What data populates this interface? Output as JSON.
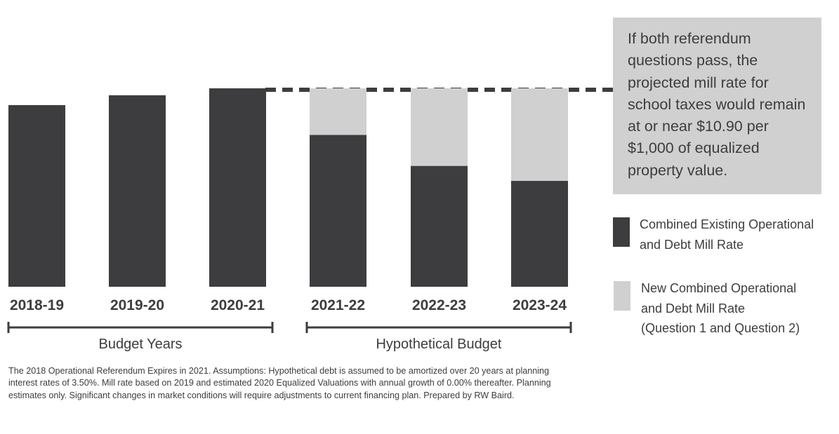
{
  "colors": {
    "existing": "#3d3d3f",
    "new": "#d1d0d0",
    "text": "#3d3d3f"
  },
  "callout": {
    "text": "If both referendum questions pass, the projected mill rate for school taxes would remain at or near $10.90 per $1,000 of equalized property value."
  },
  "legend": [
    {
      "label": "Combined Existing Operational\nand Debt Mill Rate",
      "color": "#3d3d3f"
    },
    {
      "label": "New Combined Operational\nand Debt Mill Rate\n(Question 1 and Question 2)",
      "color": "#d1d0d0"
    }
  ],
  "footnote": "The 2018 Operational Referendum Expires in 2021.  Assumptions: Hypothetical debt is assumed to be amortized over 20 years at planning interest rates of 3.50%. Mill rate based on 2019 and estimated 2020 Equalized Valuations with annual growth of 0.00% thereafter.  Planning estimates only. Significant changes in market conditions will require adjustments to current financing plan. Prepared by RW Baird.",
  "chart_data": {
    "type": "bar",
    "stacked": true,
    "categories": [
      "2018-19",
      "2019-20",
      "2020-21",
      "2021-22",
      "2022-23",
      "2023-24"
    ],
    "series": [
      {
        "name": "Combined Existing Operational and Debt Mill Rate",
        "values": [
          9.98,
          10.52,
          10.9,
          8.34,
          6.64,
          5.82
        ]
      },
      {
        "name": "New Combined Operational and Debt Mill Rate (Question 1 and Question 2)",
        "values": [
          0,
          0,
          0,
          2.56,
          4.26,
          5.08
        ]
      }
    ],
    "reference_value": 10.9,
    "groups": [
      {
        "label": "Budget Years",
        "from": "2018-19",
        "to": "2020-21"
      },
      {
        "label": "Hypothetical Budget",
        "from": "2021-22",
        "to": "2023-24"
      }
    ],
    "ylim": [
      0,
      10.9
    ],
    "grid": false,
    "legend_position": "right"
  }
}
